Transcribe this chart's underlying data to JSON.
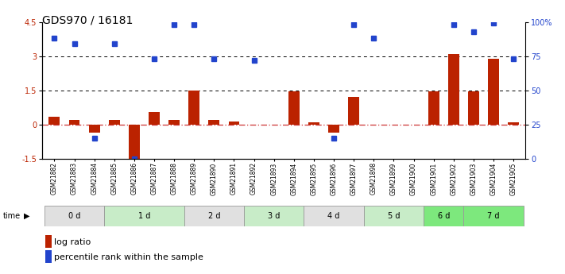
{
  "title": "GDS970 / 16181",
  "samples": [
    "GSM21882",
    "GSM21883",
    "GSM21884",
    "GSM21885",
    "GSM21886",
    "GSM21887",
    "GSM21888",
    "GSM21889",
    "GSM21890",
    "GSM21891",
    "GSM21892",
    "GSM21893",
    "GSM21894",
    "GSM21895",
    "GSM21896",
    "GSM21897",
    "GSM21898",
    "GSM21899",
    "GSM21900",
    "GSM21901",
    "GSM21902",
    "GSM21903",
    "GSM21904",
    "GSM21905"
  ],
  "log_ratio": [
    0.35,
    0.2,
    -0.35,
    0.2,
    -1.55,
    0.55,
    0.2,
    1.5,
    0.2,
    0.15,
    0.0,
    0.0,
    1.45,
    0.1,
    -0.35,
    1.2,
    0.0,
    0.0,
    0.0,
    1.45,
    3.1,
    1.45,
    2.9,
    0.1
  ],
  "percentile_pct": [
    88,
    84,
    15,
    84,
    0,
    73,
    98,
    98,
    73,
    null,
    72,
    null,
    null,
    null,
    15,
    98,
    88,
    null,
    null,
    null,
    98,
    93,
    99,
    73
  ],
  "time_groups": [
    {
      "label": "0 d",
      "start": 0,
      "end": 3,
      "color": "#e0e0e0"
    },
    {
      "label": "1 d",
      "start": 3,
      "end": 7,
      "color": "#c8ecc8"
    },
    {
      "label": "2 d",
      "start": 7,
      "end": 10,
      "color": "#e0e0e0"
    },
    {
      "label": "3 d",
      "start": 10,
      "end": 13,
      "color": "#c8ecc8"
    },
    {
      "label": "4 d",
      "start": 13,
      "end": 16,
      "color": "#e0e0e0"
    },
    {
      "label": "5 d",
      "start": 16,
      "end": 19,
      "color": "#c8ecc8"
    },
    {
      "label": "6 d",
      "start": 19,
      "end": 21,
      "color": "#7de87d"
    },
    {
      "label": "7 d",
      "start": 21,
      "end": 24,
      "color": "#7de87d"
    }
  ],
  "bar_color": "#bb2200",
  "dot_color": "#2244cc",
  "ylim_left": [
    -1.5,
    4.5
  ],
  "ylim_right": [
    0,
    100
  ],
  "yticks_left": [
    -1.5,
    0.0,
    1.5,
    3.0,
    4.5
  ],
  "ytick_labels_left": [
    "-1.5",
    "0",
    "1.5",
    "3",
    "4.5"
  ],
  "yticks_right": [
    0,
    25,
    50,
    75,
    100
  ],
  "ytick_labels_right": [
    "0",
    "25",
    "50",
    "75",
    "100%"
  ],
  "hlines": [
    1.5,
    3.0
  ],
  "zero_line_color": "#cc3333",
  "background_color": "#ffffff",
  "title_fontsize": 10,
  "tick_fontsize": 7,
  "label_fontsize": 8
}
